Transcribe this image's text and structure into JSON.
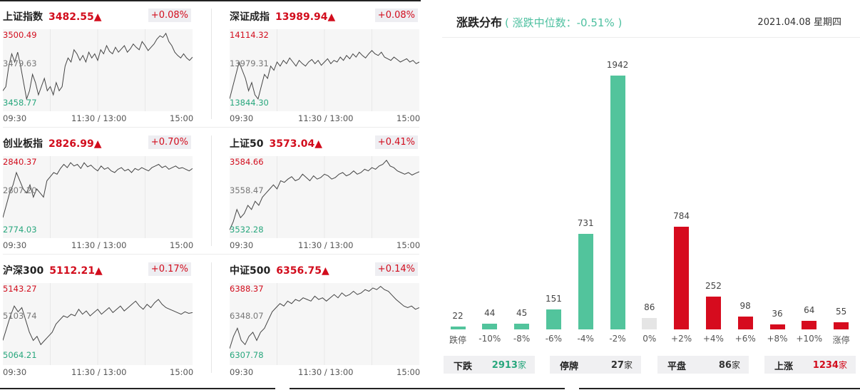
{
  "indices": [
    {
      "name": "上证指数",
      "value": "3482.55▲",
      "change": "+0.08%",
      "high": "3500.49",
      "mid": "3479.63",
      "low": "3458.77",
      "series": [
        0.25,
        0.3,
        0.55,
        0.7,
        0.6,
        0.72,
        0.55,
        0.35,
        0.15,
        0.25,
        0.45,
        0.35,
        0.2,
        0.3,
        0.4,
        0.25,
        0.3,
        0.2,
        0.35,
        0.25,
        0.3,
        0.55,
        0.65,
        0.6,
        0.75,
        0.7,
        0.62,
        0.68,
        0.6,
        0.72,
        0.65,
        0.7,
        0.62,
        0.75,
        0.7,
        0.8,
        0.73,
        0.7,
        0.78,
        0.72,
        0.76,
        0.8,
        0.72,
        0.76,
        0.82,
        0.78,
        0.75,
        0.85,
        0.8,
        0.74,
        0.78,
        0.82,
        0.88,
        0.92,
        0.9,
        0.95,
        0.85,
        0.8,
        0.72,
        0.68,
        0.65,
        0.7,
        0.65,
        0.62,
        0.66
      ]
    },
    {
      "name": "深证成指",
      "value": "13989.94▲",
      "change": "+0.08%",
      "high": "14114.32",
      "mid": "13979.31",
      "low": "13844.30",
      "series": [
        0.15,
        0.3,
        0.45,
        0.6,
        0.5,
        0.4,
        0.25,
        0.35,
        0.2,
        0.15,
        0.3,
        0.45,
        0.4,
        0.55,
        0.5,
        0.6,
        0.55,
        0.62,
        0.58,
        0.65,
        0.6,
        0.55,
        0.62,
        0.58,
        0.55,
        0.6,
        0.63,
        0.58,
        0.62,
        0.56,
        0.6,
        0.64,
        0.58,
        0.62,
        0.6,
        0.66,
        0.62,
        0.68,
        0.64,
        0.7,
        0.66,
        0.72,
        0.68,
        0.65,
        0.7,
        0.74,
        0.7,
        0.68,
        0.72,
        0.66,
        0.64,
        0.62,
        0.66,
        0.63,
        0.6,
        0.62,
        0.64,
        0.6,
        0.62,
        0.58,
        0.6
      ]
    },
    {
      "name": "创业板指",
      "value": "2826.99▲",
      "change": "+0.70%",
      "high": "2840.37",
      "mid": "2807.20",
      "low": "2774.03",
      "series": [
        0.25,
        0.4,
        0.55,
        0.65,
        0.8,
        0.7,
        0.6,
        0.55,
        0.65,
        0.5,
        0.6,
        0.55,
        0.5,
        0.7,
        0.75,
        0.8,
        0.78,
        0.85,
        0.9,
        0.86,
        0.92,
        0.88,
        0.9,
        0.85,
        0.92,
        0.87,
        0.89,
        0.85,
        0.82,
        0.88,
        0.84,
        0.86,
        0.82,
        0.8,
        0.84,
        0.86,
        0.82,
        0.84,
        0.8,
        0.85,
        0.83,
        0.86,
        0.84,
        0.82,
        0.86,
        0.88,
        0.9,
        0.86,
        0.88,
        0.84,
        0.86,
        0.88,
        0.85,
        0.86,
        0.84,
        0.82,
        0.85
      ]
    },
    {
      "name": "上证50",
      "value": "3573.04▲",
      "change": "+0.41%",
      "high": "3584.66",
      "mid": "3558.47",
      "low": "3532.28",
      "series": [
        0.1,
        0.2,
        0.35,
        0.25,
        0.3,
        0.4,
        0.35,
        0.45,
        0.4,
        0.5,
        0.55,
        0.6,
        0.65,
        0.6,
        0.7,
        0.68,
        0.72,
        0.75,
        0.7,
        0.72,
        0.78,
        0.74,
        0.7,
        0.76,
        0.72,
        0.74,
        0.78,
        0.76,
        0.72,
        0.74,
        0.78,
        0.8,
        0.76,
        0.78,
        0.82,
        0.78,
        0.8,
        0.84,
        0.82,
        0.86,
        0.84,
        0.88,
        0.9,
        0.95,
        0.88,
        0.86,
        0.82,
        0.8,
        0.78,
        0.8,
        0.77,
        0.79,
        0.81
      ]
    },
    {
      "name": "沪深300",
      "value": "5112.21▲",
      "change": "+0.17%",
      "high": "5143.27",
      "mid": "5103.74",
      "low": "5064.21",
      "series": [
        0.3,
        0.45,
        0.6,
        0.72,
        0.65,
        0.7,
        0.55,
        0.4,
        0.3,
        0.35,
        0.25,
        0.3,
        0.35,
        0.4,
        0.5,
        0.55,
        0.6,
        0.58,
        0.62,
        0.6,
        0.68,
        0.62,
        0.66,
        0.6,
        0.64,
        0.68,
        0.62,
        0.66,
        0.7,
        0.64,
        0.68,
        0.72,
        0.66,
        0.7,
        0.74,
        0.78,
        0.72,
        0.68,
        0.74,
        0.7,
        0.76,
        0.8,
        0.74,
        0.7,
        0.68,
        0.66,
        0.64,
        0.62,
        0.65,
        0.63,
        0.64
      ]
    },
    {
      "name": "中证500",
      "value": "6356.75▲",
      "change": "+0.14%",
      "high": "6388.37",
      "mid": "6348.07",
      "low": "6307.78",
      "series": [
        0.2,
        0.35,
        0.45,
        0.3,
        0.25,
        0.35,
        0.4,
        0.3,
        0.4,
        0.45,
        0.55,
        0.65,
        0.7,
        0.75,
        0.72,
        0.78,
        0.75,
        0.8,
        0.78,
        0.82,
        0.8,
        0.78,
        0.84,
        0.8,
        0.82,
        0.78,
        0.82,
        0.86,
        0.82,
        0.88,
        0.84,
        0.86,
        0.9,
        0.86,
        0.88,
        0.92,
        0.9,
        0.94,
        0.92,
        0.96,
        0.92,
        0.9,
        0.85,
        0.8,
        0.76,
        0.72,
        0.7,
        0.72,
        0.68,
        0.7
      ]
    }
  ],
  "time_axis": {
    "start": "09:30",
    "mid": "11:30 / 13:00",
    "end": "15:00"
  },
  "distribution": {
    "title": "涨跌分布",
    "subtitle": "( 涨跌中位数：-0.51% )",
    "date": "2021.04.08 星期四",
    "colors": {
      "down": "#52c49c",
      "flat": "#e5e5e5",
      "up": "#d60b1e"
    },
    "bars": [
      {
        "label": "跌停",
        "count": 22,
        "dir": "down"
      },
      {
        "label": "-10%",
        "count": 44,
        "dir": "down"
      },
      {
        "label": "-8%",
        "count": 45,
        "dir": "down"
      },
      {
        "label": "-6%",
        "count": 151,
        "dir": "down"
      },
      {
        "label": "-4%",
        "count": 731,
        "dir": "down"
      },
      {
        "label": "-2%",
        "count": 1942,
        "dir": "down"
      },
      {
        "label": "0%",
        "count": 86,
        "dir": "flat"
      },
      {
        "label": "+2%",
        "count": 784,
        "dir": "up"
      },
      {
        "label": "+4%",
        "count": 252,
        "dir": "up"
      },
      {
        "label": "+6%",
        "count": 98,
        "dir": "up"
      },
      {
        "label": "+8%",
        "count": 36,
        "dir": "up"
      },
      {
        "label": "+10%",
        "count": 64,
        "dir": "up"
      },
      {
        "label": "涨停",
        "count": 55,
        "dir": "up"
      }
    ],
    "stats": [
      {
        "label": "下跌",
        "value": "2913",
        "unit": "家",
        "color": "#28a77d"
      },
      {
        "label": "停牌",
        "value": "27",
        "unit": "家",
        "color": "#333333"
      },
      {
        "label": "平盘",
        "value": "86",
        "unit": "家",
        "color": "#333333"
      },
      {
        "label": "上涨",
        "value": "1234",
        "unit": "家",
        "color": "#d20d1d"
      }
    ]
  }
}
